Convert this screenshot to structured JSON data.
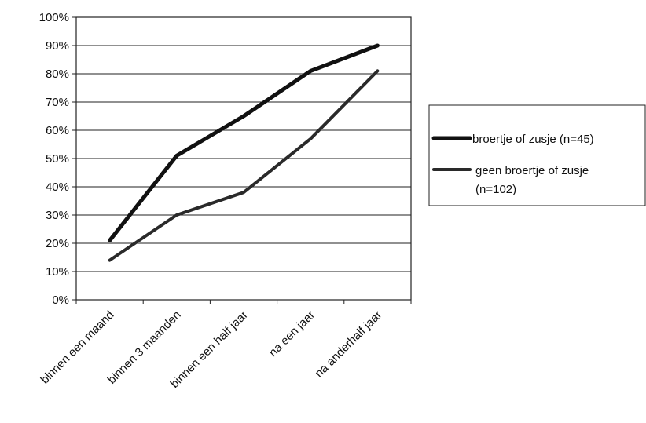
{
  "chart_data": {
    "type": "line",
    "categories": [
      "binnen een maand",
      "binnen 3 maanden",
      "binnen een half jaar",
      "na een jaar",
      "na anderhalf jaar"
    ],
    "series": [
      {
        "name": "broertje of zusje (n=45)",
        "values": [
          21,
          51,
          65,
          81,
          90
        ],
        "color": "#111111"
      },
      {
        "name": "geen broertje of zusje (n=102)",
        "values": [
          14,
          30,
          38,
          57,
          81
        ],
        "color": "#2a2a2a"
      }
    ],
    "yticks": [
      "0%",
      "10%",
      "20%",
      "30%",
      "40%",
      "50%",
      "60%",
      "70%",
      "80%",
      "90%",
      "100%"
    ],
    "ylim": [
      0,
      100
    ],
    "grid": true,
    "legend_position": "right"
  }
}
